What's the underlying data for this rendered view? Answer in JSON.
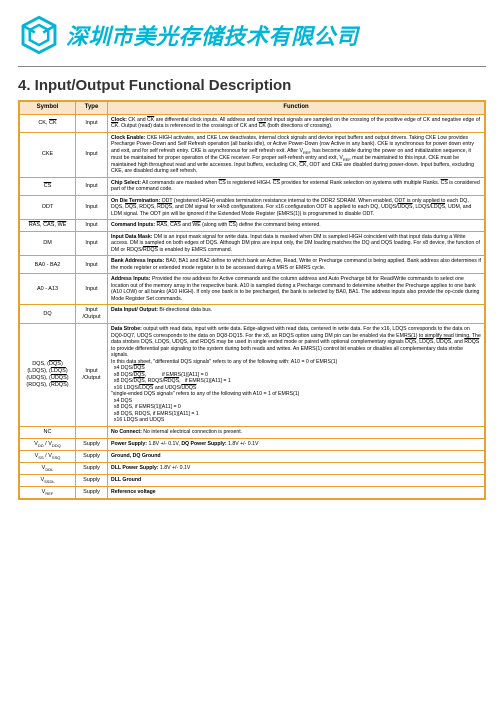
{
  "company_name": "深圳市美光存储技术有限公司",
  "section_title": "4. Input/Output Functional Description",
  "headers": {
    "symbol": "Symbol",
    "type": "Type",
    "function": "Function"
  },
  "rows": [
    {
      "symbol_html": "CK, <span class='ov'>CK</span>",
      "type": "Input",
      "func_html": "<span class='b'>Clock:</span> CK and <span class='ov'>CK</span> are differential clock inputs. All address and control input signals are sampled on the crossing of the positive edge of CK and negative edge of <span class='ov'>CK</span>. Output (read) data is referenced to the crossings of CK and <span class='ov'>CK</span> (both directions of crossing)."
    },
    {
      "symbol_html": "CKE",
      "type": "Input",
      "func_html": "<span class='b'>Clock Enable:</span> CKE HIGH activates, and CKE Low deactivates, internal clock signals and device input buffers and output drivers. Taking CKE Low provides Precharge Power-Down and Self Refresh operation (all banks idle), or Active Power-Down (row Active in any bank). CKE is synchronous for power down entry and exit, and for self refresh entry. CKE is asynchronous for self refresh exit. After V<sub>REF</sub> has become stable during the power on and initialization sequence, it must be maintained for proper operation of the CKE receiver. For proper self-refresh entry and exit, V<sub>REF</sub> must be maintained to this input. CKE must be maintained high throughout read and write accesses. Input buffers, excluding CK, <span class='ov'>CK</span>, ODT and CKE are disabled during power-down. Input buffers, excluding CKE, are disabled during self refresh."
    },
    {
      "symbol_html": "<span class='ov'>CS</span>",
      "type": "Input",
      "func_html": "<span class='b'>Chip Select:</span> All commands are masked when <span class='ov'>CS</span> is registered HIGH. <span class='ov'>CS</span> provides for external Rank selection on systems with multiple Ranks. <span class='ov'>CS</span> is considered part of the command code."
    },
    {
      "symbol_html": "ODT",
      "type": "Input",
      "func_html": "<span class='b'>On Die Termination:</span> ODT (registered HIGH) enables termination resistance internal to the DDR2 SDRAM. When enabled, ODT is only applied to each DQ, DQS, <span class='ov'>DQS</span>, RDQS, <span class='ov'>RDQS</span>, and DM signal for x4/x8 configurations. For x16 configuration ODT is applied to each DQ, UDQS/<span class='ov'>UDQS</span>, LDQS/<span class='ov'>LDQS</span>, UDM, and LDM signal. The ODT pin will be ignored if the Extended Mode Register (EMRS(1)) is programmed to disable ODT."
    },
    {
      "symbol_html": "<span class='ov'>RAS</span>, <span class='ov'>CAS</span>, <span class='ov'>WE</span>",
      "type": "Input",
      "func_html": "<span class='b'>Command Inputs:</span> <span class='ov'>RAS</span>, <span class='ov'>CAS</span> and <span class='ov'>WE</span> (along with <span class='ov'>CS</span>) define the command being entered."
    },
    {
      "symbol_html": "DM",
      "type": "Input",
      "func_html": "<span class='b'>Input Data Mask:</span> DM is an input mask signal for write data. Input data is masked when DM is sampled HIGH coincident with that input data during a Write access. DM is sampled on both edges of DQS. Although DM pins are input only, the DM loading matches the DQ and DQS loading. For x8 device, the function of DM or RDQS/<span class='ov'>RDQS</span> is enabled by EMRS command."
    },
    {
      "symbol_html": "BA0 - BA2",
      "type": "Input",
      "func_html": "<span class='b'>Bank Address Inputs:</span> BA0, BA1 and BA2 define to which bank an Active, Read, Write or Precharge command is being applied. Bank address also determines if the mode register or extended mode register is to be accessed during a MRS or EMRS cycle."
    },
    {
      "symbol_html": "A0 - A13",
      "type": "Input",
      "func_html": "<span class='b'>Address Inputs:</span> Provided the row address for Active commands and the column address and Auto Precharge bit for Read/Write commands to select one location out of the memory array in the respective bank. A10 is sampled during a Precharge command to determine whether the Precharge applies to one bank (A10 LOW) or all banks (A10 HIGH). If only one bank is to be precharged, the bank is selected by BA0, BA1. The address inputs also provide the op-code during Mode Register Set commands."
    },
    {
      "symbol_html": "DQ",
      "type": "Input /Output",
      "func_html": "<span class='b'>Data Input/ Output:</span> Bi-directional data bus."
    },
    {
      "symbol_html": "DQS, (<span class='ov'>DQS</span>)<br>(LDQS), (<span class='ov'>LDQS</span>)<br>(UDQS), (<span class='ov'>UDQS</span>)<br>(RDQS), (<span class='ov'>RDQS</span>)",
      "type": "Input /Output",
      "func_html": "<span class='b'>Data Strobe:</span> output with read data, input with write data. Edge-aligned with read data, centered in write data. For the x16, LDQS corresponds to the data on DQ0-DQ7, UDQS corresponds to the data on DQ8-DQ15. For the x8, an RDQS option using DM pin can be enabled via the EMRS(1) to simplify read timing. The data strobes DQS, LDQS, UDQS, and RDQS may be used in single ended mode or paired with optional complementary signals <span class='ov'>DQS</span>, <span class='ov'>LDQS</span>, <span class='ov'>UDQS</span>, and <span class='ov'>RDQS</span> to provide differential pair signaling to the system during both reads and writes. An EMRS(1) control bit enables or disables all complementary data strobe signals.<br>In this data sheet, \"differential DQS signals\" refers to any of the following with: A10 = 0 of EMRS(1)<br>&nbsp;&nbsp;x4 DQS/<span class='ov'>DQS</span><br>&nbsp;&nbsp;x8 DQS/<span class='ov'>DQS</span>, &nbsp;&nbsp;&nbsp;&nbsp;&nbsp;&nbsp;&nbsp;&nbsp;&nbsp;&nbsp;if EMRS(1)[A11] = 0<br>&nbsp;&nbsp;x8 DQS/<span class='ov'>DQS</span>, RDQS/<span class='ov'>RDQS</span>, &nbsp;&nbsp;if EMRS(1)[A11] = 1<br>&nbsp;&nbsp;x16 LDQS/<span class='ov'>LDQS</span> and UDQS/<span class='ov'>UDQS</span><br>\"single-ended DQS signals\" refers to any of the following with A10 = 1 of EMRS(1)<br>&nbsp;&nbsp;x4 DQS<br>&nbsp;&nbsp;x8 DQS, if EMRS(1)[A11] = 0<br>&nbsp;&nbsp;x8 DQS, RDQS, if EMRS(1)[A11] = 1<br>&nbsp;&nbsp;x16 LDQS and UDQS"
    },
    {
      "symbol_html": "NC",
      "type": "",
      "func_html": "<span class='b'>No Connect:</span> No internal electrical connection is present."
    },
    {
      "symbol_html": "V<sub>DD</sub> / V<sub>DDQ</sub>",
      "type": "Supply",
      "func_html": "<span class='b'>Power Supply:</span> 1.8V +/- 0.1V, <span class='b'>DQ Power Supply:</span> 1.8V +/- 0.1V"
    },
    {
      "symbol_html": "V<sub>SS</sub> / V<sub>SSQ</sub>",
      "type": "Supply",
      "func_html": "<span class='b'>Ground, DQ Ground</span>"
    },
    {
      "symbol_html": "V<sub>DDL</sub>",
      "type": "Supply",
      "func_html": "<span class='b'>DLL Power Supply:</span> 1.8V +/- 0.1V"
    },
    {
      "symbol_html": "V<sub>SSDL</sub>",
      "type": "Supply",
      "func_html": "<span class='b'>DLL Ground</span>"
    },
    {
      "symbol_html": "V<sub>REF</sub>",
      "type": "Supply",
      "func_html": "<span class='b'>Reference voltage</span>"
    }
  ],
  "colors": {
    "border": "#e8a030",
    "header_bg": "#fbe5c8",
    "brand": "#00b5d8"
  }
}
